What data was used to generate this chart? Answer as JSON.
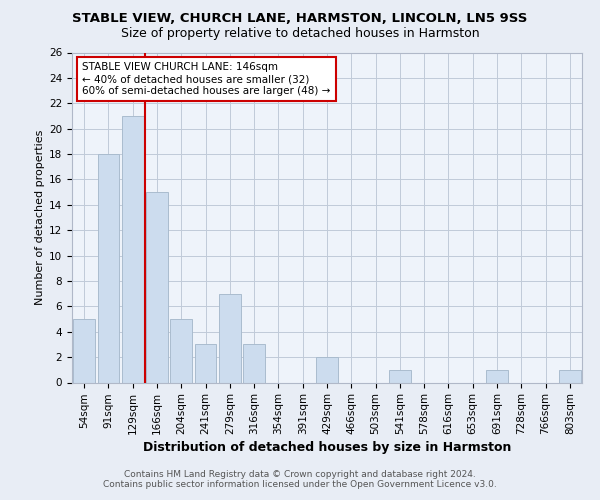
{
  "title": "STABLE VIEW, CHURCH LANE, HARMSTON, LINCOLN, LN5 9SS",
  "subtitle": "Size of property relative to detached houses in Harmston",
  "xlabel": "Distribution of detached houses by size in Harmston",
  "ylabel": "Number of detached properties",
  "categories": [
    "54sqm",
    "91sqm",
    "129sqm",
    "166sqm",
    "204sqm",
    "241sqm",
    "279sqm",
    "316sqm",
    "354sqm",
    "391sqm",
    "429sqm",
    "466sqm",
    "503sqm",
    "541sqm",
    "578sqm",
    "616sqm",
    "653sqm",
    "691sqm",
    "728sqm",
    "766sqm",
    "803sqm"
  ],
  "values": [
    5,
    18,
    21,
    15,
    5,
    3,
    7,
    3,
    0,
    0,
    2,
    0,
    0,
    1,
    0,
    0,
    0,
    1,
    0,
    0,
    1
  ],
  "bar_color": "#ccdcee",
  "bar_edgecolor": "#aabcce",
  "redline_index": 2.5,
  "annotation_text": "STABLE VIEW CHURCH LANE: 146sqm\n← 40% of detached houses are smaller (32)\n60% of semi-detached houses are larger (48) →",
  "annotation_box_color": "#ffffff",
  "annotation_box_edgecolor": "#cc0000",
  "redline_color": "#cc0000",
  "ylim": [
    0,
    26
  ],
  "yticks": [
    0,
    2,
    4,
    6,
    8,
    10,
    12,
    14,
    16,
    18,
    20,
    22,
    24,
    26
  ],
  "footer_line1": "Contains HM Land Registry data © Crown copyright and database right 2024.",
  "footer_line2": "Contains public sector information licensed under the Open Government Licence v3.0.",
  "bg_color": "#e8edf5",
  "plot_bg_color": "#eef3fa",
  "grid_color": "#c0cad8",
  "title_fontsize": 9.5,
  "subtitle_fontsize": 9,
  "tick_fontsize": 7.5,
  "ylabel_fontsize": 8,
  "xlabel_fontsize": 9
}
